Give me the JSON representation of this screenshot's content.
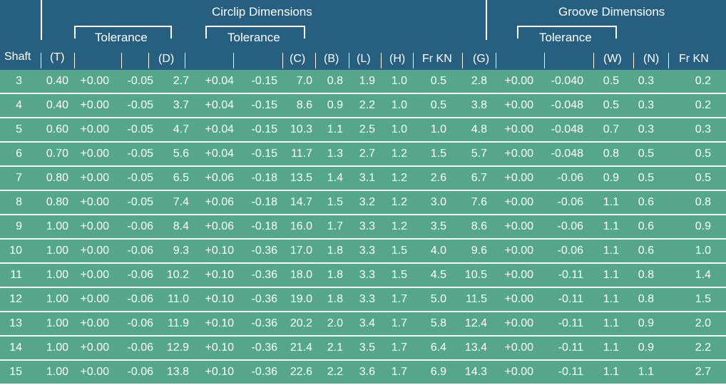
{
  "header": {
    "circlip_title": "Circlip Dimensions",
    "groove_title": "Groove Dimensions",
    "tolerance_1": "Tolerance",
    "tolerance_2": "Tolerance",
    "tolerance_3": "Tolerance",
    "columns": {
      "shaft": "Shaft",
      "t": "(T)",
      "d": "(D)",
      "c": "(C)",
      "b": "(B)",
      "l": "(L)",
      "h": "(H)",
      "fr_kn_1": "Fr KN",
      "g": "(G)",
      "w": "(W)",
      "n": "(N)",
      "fr_kn_2": "Fr KN"
    }
  },
  "rows": [
    {
      "shaft": "3",
      "t": "0.40",
      "tp": "+0.00",
      "tm": "-0.05",
      "d": "2.7",
      "dp": "+0.04",
      "dm": "-0.15",
      "c": "7.0",
      "b": "0.8",
      "l": "1.9",
      "h": "1.0",
      "fr1": "0.5",
      "g": "2.8",
      "gp": "+0.00",
      "gm": "-0.040",
      "w": "0.5",
      "n": "0.3",
      "fr2": "0.2"
    },
    {
      "shaft": "4",
      "t": "0.40",
      "tp": "+0.00",
      "tm": "-0.05",
      "d": "3.7",
      "dp": "+0.04",
      "dm": "-0.15",
      "c": "8.6",
      "b": "0.9",
      "l": "2.2",
      "h": "1.0",
      "fr1": "0.5",
      "g": "3.8",
      "gp": "+0.00",
      "gm": "-0.048",
      "w": "0.5",
      "n": "0.3",
      "fr2": "0.2"
    },
    {
      "shaft": "5",
      "t": "0.60",
      "tp": "+0.00",
      "tm": "-0.05",
      "d": "4.7",
      "dp": "+0.04",
      "dm": "-0.15",
      "c": "10.3",
      "b": "1.1",
      "l": "2.5",
      "h": "1.0",
      "fr1": "1.0",
      "g": "4.8",
      "gp": "+0.00",
      "gm": "-0.048",
      "w": "0.7",
      "n": "0.3",
      "fr2": "0.3"
    },
    {
      "shaft": "6",
      "t": "0.70",
      "tp": "+0.00",
      "tm": "-0.05",
      "d": "5.6",
      "dp": "+0.04",
      "dm": "-0.15",
      "c": "11.7",
      "b": "1.3",
      "l": "2.7",
      "h": "1.2",
      "fr1": "1.5",
      "g": "5.7",
      "gp": "+0.00",
      "gm": "-0.048",
      "w": "0.8",
      "n": "0.5",
      "fr2": "0.5"
    },
    {
      "shaft": "7",
      "t": "0.80",
      "tp": "+0.00",
      "tm": "-0.05",
      "d": "6.5",
      "dp": "+0.06",
      "dm": "-0.18",
      "c": "13.5",
      "b": "1.4",
      "l": "3.1",
      "h": "1.2",
      "fr1": "2.6",
      "g": "6.7",
      "gp": "+0.00",
      "gm": "-0.06",
      "w": "0.9",
      "n": "0.5",
      "fr2": "0.5"
    },
    {
      "shaft": "8",
      "t": "0.80",
      "tp": "+0.00",
      "tm": "-0.05",
      "d": "7.4",
      "dp": "+0.06",
      "dm": "-0.18",
      "c": "14.7",
      "b": "1.5",
      "l": "3.2",
      "h": "1.2",
      "fr1": "3.0",
      "g": "7.6",
      "gp": "+0.00",
      "gm": "-0.06",
      "w": "1.1",
      "n": "0.6",
      "fr2": "0.8"
    },
    {
      "shaft": "9",
      "t": "1.00",
      "tp": "+0.00",
      "tm": "-0.06",
      "d": "8.4",
      "dp": "+0.06",
      "dm": "-0.18",
      "c": "16.0",
      "b": "1.7",
      "l": "3.3",
      "h": "1.2",
      "fr1": "3.5",
      "g": "8.6",
      "gp": "+0.00",
      "gm": "-0.06",
      "w": "1.1",
      "n": "0.6",
      "fr2": "0.9"
    },
    {
      "shaft": "10",
      "t": "1.00",
      "tp": "+0.00",
      "tm": "-0.06",
      "d": "9.3",
      "dp": "+0.10",
      "dm": "-0.36",
      "c": "17.0",
      "b": "1.8",
      "l": "3.3",
      "h": "1.5",
      "fr1": "4.0",
      "g": "9.6",
      "gp": "+0.00",
      "gm": "-0.06",
      "w": "1.1",
      "n": "0.6",
      "fr2": "1.0"
    },
    {
      "shaft": "11",
      "t": "1.00",
      "tp": "+0.00",
      "tm": "-0.06",
      "d": "10.2",
      "dp": "+0.10",
      "dm": "-0.36",
      "c": "18.0",
      "b": "1.8",
      "l": "3.3",
      "h": "1.5",
      "fr1": "4.5",
      "g": "10.5",
      "gp": "+0.00",
      "gm": "-0.11",
      "w": "1.1",
      "n": "0.8",
      "fr2": "1.4"
    },
    {
      "shaft": "12",
      "t": "1.00",
      "tp": "+0.00",
      "tm": "-0.06",
      "d": "11.0",
      "dp": "+0.10",
      "dm": "-0.36",
      "c": "19.0",
      "b": "1.8",
      "l": "3.3",
      "h": "1.7",
      "fr1": "5.0",
      "g": "11.5",
      "gp": "+0.00",
      "gm": "-0.11",
      "w": "1.1",
      "n": "0.8",
      "fr2": "1.5"
    },
    {
      "shaft": "13",
      "t": "1.00",
      "tp": "+0.00",
      "tm": "-0.06",
      "d": "11.9",
      "dp": "+0.10",
      "dm": "-0.36",
      "c": "20.2",
      "b": "2.0",
      "l": "3.4",
      "h": "1.7",
      "fr1": "5.8",
      "g": "12.4",
      "gp": "+0.00",
      "gm": "-0.11",
      "w": "1.1",
      "n": "0.9",
      "fr2": "2.0"
    },
    {
      "shaft": "14",
      "t": "1.00",
      "tp": "+0.00",
      "tm": "-0.06",
      "d": "12.9",
      "dp": "+0.10",
      "dm": "-0.36",
      "c": "21.4",
      "b": "2.1",
      "l": "3.5",
      "h": "1.7",
      "fr1": "6.4",
      "g": "13.4",
      "gp": "+0.00",
      "gm": "-0.11",
      "w": "1.1",
      "n": "0.9",
      "fr2": "2.2"
    },
    {
      "shaft": "15",
      "t": "1.00",
      "tp": "+0.00",
      "tm": "-0.06",
      "d": "13.8",
      "dp": "+0.10",
      "dm": "-0.36",
      "c": "22.6",
      "b": "2.2",
      "l": "3.6",
      "h": "1.7",
      "fr1": "6.9",
      "g": "14.3",
      "gp": "+0.00",
      "gm": "-0.11",
      "w": "1.1",
      "n": "1.1",
      "fr2": "2.7"
    }
  ],
  "colors": {
    "header_bg": "#275f80",
    "row_bg": "#55a68a",
    "separator": "#ffffff"
  }
}
